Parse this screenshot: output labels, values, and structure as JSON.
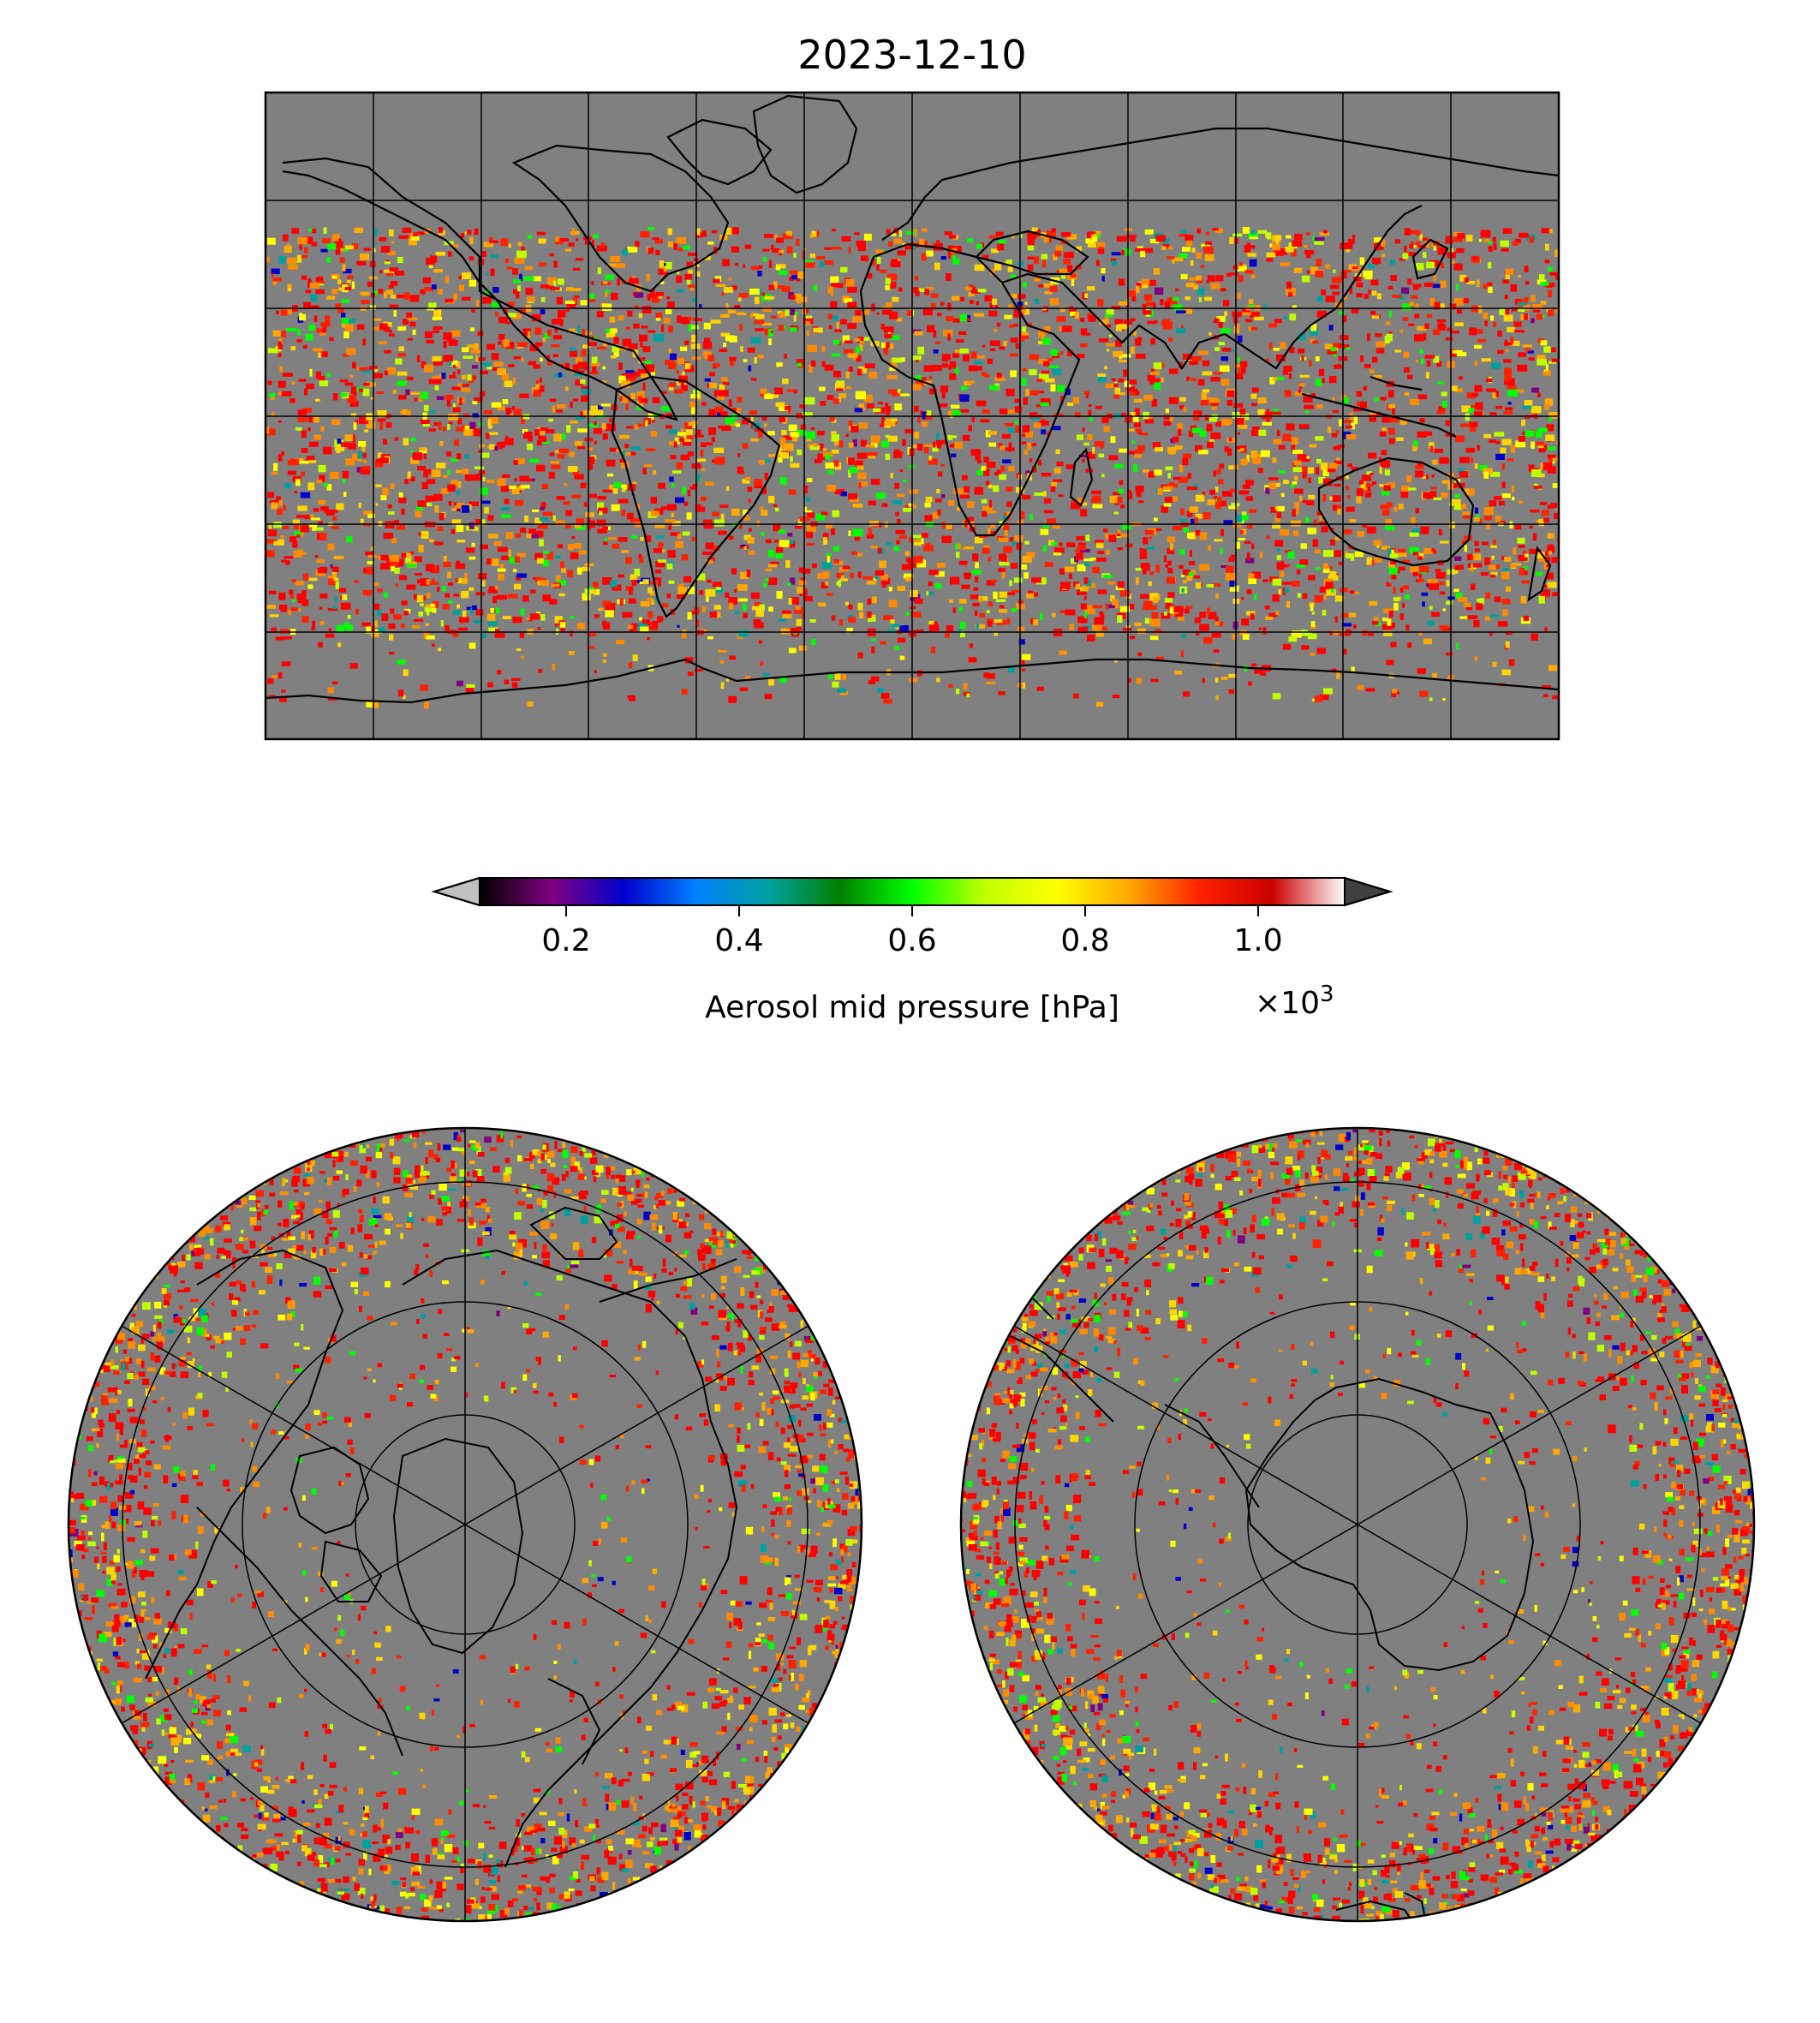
{
  "figure": {
    "title": "2023-12-10"
  },
  "colorbar": {
    "label": "Aerosol mid pressure [hPa]",
    "multiplier": "×10",
    "multiplier_exp": "3",
    "ticks": [
      {
        "value": 0.2,
        "label": "0.2"
      },
      {
        "value": 0.4,
        "label": "0.4"
      },
      {
        "value": 0.6,
        "label": "0.6"
      },
      {
        "value": 0.8,
        "label": "0.8"
      },
      {
        "value": 1.0,
        "label": "1.0"
      }
    ],
    "range": [
      0.1,
      1.1
    ],
    "extend": "both",
    "under_color": "#c0c0c0",
    "over_color": "#404040",
    "stops": [
      "#000000",
      "#800080",
      "#0000cc",
      "#0080ff",
      "#00a0a0",
      "#008000",
      "#00ff00",
      "#c0ff00",
      "#ffff00",
      "#ffaa00",
      "#ff2000",
      "#cc0000",
      "#ffffff"
    ]
  },
  "maps": {
    "background_color": "#808080",
    "missing_value_color": "#808080",
    "palette": [
      "#ff0000",
      "#ff2000",
      "#ff8c00",
      "#ffaa00",
      "#ffd700",
      "#ffff00",
      "#c0ff00",
      "#00ff00",
      "#00a0a0",
      "#0000cc",
      "#800080"
    ],
    "panels": [
      {
        "name": "global",
        "projection": "equirectangular"
      },
      {
        "name": "north-polar",
        "projection": "north-polar-stereographic"
      },
      {
        "name": "south-polar",
        "projection": "south-polar-stereographic"
      }
    ]
  }
}
